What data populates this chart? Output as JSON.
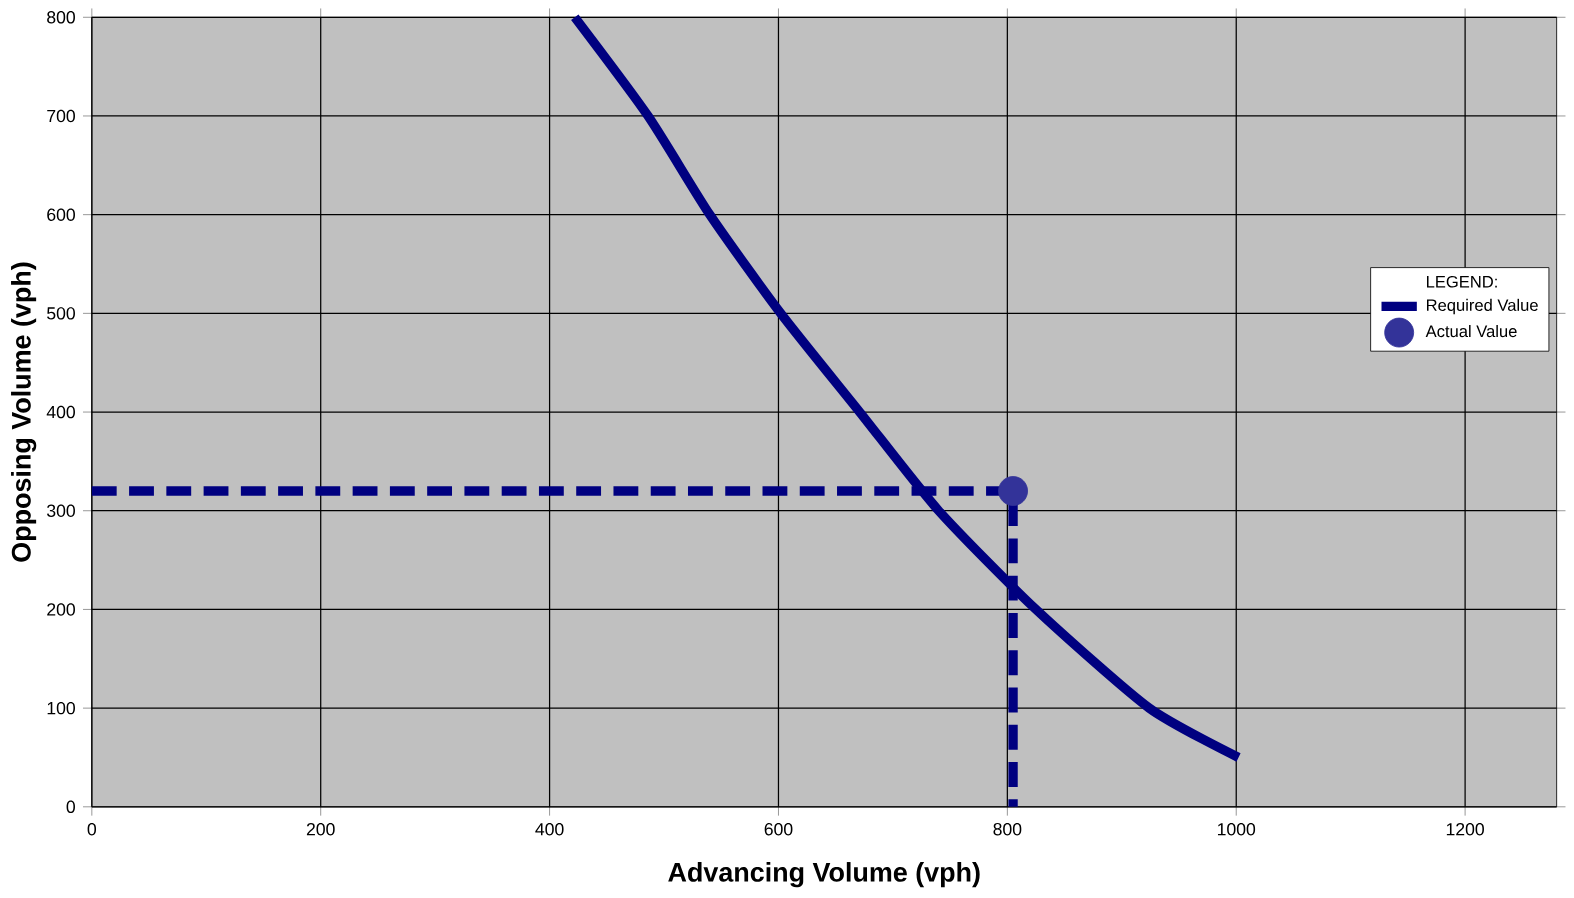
{
  "chart_data": {
    "type": "line",
    "xlabel": "Advancing Volume (vph)",
    "ylabel": "Opposing Volume (vph)",
    "legend_title": "LEGEND:",
    "xlim": [
      0,
      1280
    ],
    "ylim": [
      0,
      800
    ],
    "xticks": [
      0,
      200,
      400,
      600,
      800,
      1000,
      1200
    ],
    "yticks": [
      0,
      100,
      200,
      300,
      400,
      500,
      600,
      700,
      800
    ],
    "grid": true,
    "legend": "right",
    "series": [
      {
        "name": "Required  Value",
        "color": "#000080",
        "line_style": "solid",
        "marker": "none",
        "x": [
          422,
          486,
          540,
          602,
          671,
          740,
          825,
          924,
          1002
        ],
        "values": [
          800,
          700,
          600,
          500,
          400,
          300,
          200,
          100,
          50
        ]
      },
      {
        "name": "Actual Value",
        "type": "scatter",
        "color": "#333399",
        "marker": "circle",
        "x": [
          805
        ],
        "values": [
          320
        ]
      },
      {
        "color": "#000080",
        "line_style": "dashed",
        "marker": "none",
        "x": [
          0,
          805,
          805
        ],
        "values": [
          320,
          320,
          0
        ]
      }
    ]
  }
}
